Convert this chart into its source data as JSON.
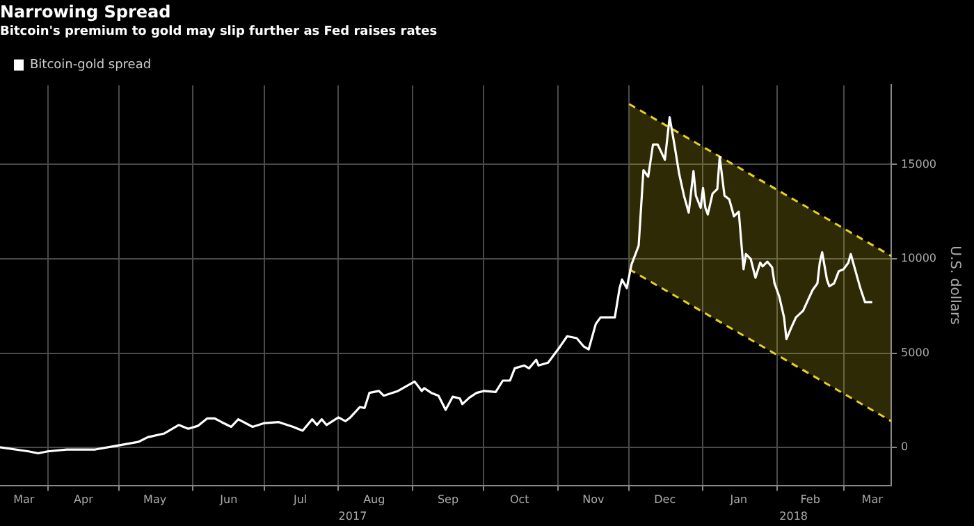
{
  "chart_data": {
    "type": "line",
    "title": "Narrowing Spread",
    "subtitle": "Bitcoin's premium to gold may slip further as Fed raises rates",
    "ylabel": "U.S. dollars",
    "legend": "top left",
    "grid": true,
    "marker": "none",
    "xlim": [
      "2017-03-12",
      "2018-03-21"
    ],
    "xticks": [
      {
        "value": "2017-04-01",
        "label": null
      },
      {
        "value": "2017-05-01",
        "label": null
      },
      {
        "value": "2017-06-01",
        "label": null
      },
      {
        "value": "2017-07-01",
        "label": null
      },
      {
        "value": "2017-08-01",
        "label": null
      },
      {
        "value": "2017-09-01",
        "label": null
      },
      {
        "value": "2017-10-01",
        "label": null
      },
      {
        "value": "2017-11-01",
        "label": null
      },
      {
        "value": "2017-12-01",
        "label": null
      },
      {
        "value": "2018-01-01",
        "label": null
      },
      {
        "value": "2018-02-01",
        "label": null
      },
      {
        "value": "2018-03-01",
        "label": null
      },
      {
        "value": "2017-03-22",
        "label": "Mar"
      },
      {
        "value": "2017-04-16",
        "label": "Apr"
      },
      {
        "value": "2017-05-16",
        "label": "May"
      },
      {
        "value": "2017-06-16",
        "label": "Jun"
      },
      {
        "value": "2017-07-16",
        "label": "Jul"
      },
      {
        "value": "2017-08-16",
        "label": "Aug"
      },
      {
        "value": "2017-09-16",
        "label": "Sep"
      },
      {
        "value": "2017-10-16",
        "label": "Oct"
      },
      {
        "value": "2017-11-16",
        "label": "Nov"
      },
      {
        "value": "2017-12-16",
        "label": "Dec"
      },
      {
        "value": "2018-01-16",
        "label": "Jan"
      },
      {
        "value": "2018-02-15",
        "label": "Feb"
      },
      {
        "value": "2018-03-13",
        "label": "Mar"
      }
    ],
    "x2lim": [
      "2017-03-12",
      "2018-03-21"
    ],
    "x2ticks": [
      {
        "value": "2017-08-07",
        "label": "2017"
      },
      {
        "value": "2018-02-08",
        "label": "2018"
      }
    ],
    "ylim": [
      -2000,
      19200
    ],
    "yticks": [
      0,
      5000,
      10000,
      15000
    ],
    "series": [
      {
        "name": "Bitcoin-gold spread",
        "color": "#ffffff",
        "line_style": "solid",
        "x": [
          "2017-03-12",
          "2017-03-24",
          "2017-03-28",
          "2017-04-01",
          "2017-04-09",
          "2017-04-21",
          "2017-04-30",
          "2017-05-09",
          "2017-05-13",
          "2017-05-20",
          "2017-05-26",
          "2017-05-30",
          "2017-06-03",
          "2017-06-07",
          "2017-06-10",
          "2017-06-13",
          "2017-06-17",
          "2017-06-20",
          "2017-06-26",
          "2017-07-01",
          "2017-07-07",
          "2017-07-13",
          "2017-07-17",
          "2017-07-21",
          "2017-07-23",
          "2017-07-25",
          "2017-07-27",
          "2017-08-01",
          "2017-08-04",
          "2017-08-06",
          "2017-08-10",
          "2017-08-12",
          "2017-08-14",
          "2017-08-18",
          "2017-08-20",
          "2017-08-26",
          "2017-09-02",
          "2017-09-05",
          "2017-09-06",
          "2017-09-09",
          "2017-09-12",
          "2017-09-15",
          "2017-09-18",
          "2017-09-21",
          "2017-09-22",
          "2017-09-25",
          "2017-09-28",
          "2017-10-01",
          "2017-10-06",
          "2017-10-09",
          "2017-10-12",
          "2017-10-14",
          "2017-10-18",
          "2017-10-20",
          "2017-10-23",
          "2017-10-24",
          "2017-10-28",
          "2017-11-02",
          "2017-11-05",
          "2017-11-09",
          "2017-11-12",
          "2017-11-14",
          "2017-11-17",
          "2017-11-19",
          "2017-11-25",
          "2017-11-27",
          "2017-11-28",
          "2017-11-30",
          "2017-12-02",
          "2017-12-05",
          "2017-12-07",
          "2017-12-09",
          "2017-12-11",
          "2017-12-13",
          "2017-12-16",
          "2017-12-18",
          "2017-12-20",
          "2017-12-22",
          "2017-12-24",
          "2017-12-26",
          "2017-12-28",
          "2017-12-29",
          "2017-12-31",
          "2018-01-01",
          "2018-01-02",
          "2018-01-03",
          "2018-01-05",
          "2018-01-07",
          "2018-01-08",
          "2018-01-10",
          "2018-01-12",
          "2018-01-14",
          "2018-01-16",
          "2018-01-18",
          "2018-01-19",
          "2018-01-21",
          "2018-01-23",
          "2018-01-25",
          "2018-01-26",
          "2018-01-28",
          "2018-01-30",
          "2018-01-31",
          "2018-02-02",
          "2018-02-04",
          "2018-02-05",
          "2018-02-07",
          "2018-02-09",
          "2018-02-12",
          "2018-02-14",
          "2018-02-16",
          "2018-02-18",
          "2018-02-19",
          "2018-02-20",
          "2018-02-22",
          "2018-02-23",
          "2018-02-25",
          "2018-02-27",
          "2018-03-01",
          "2018-03-03",
          "2018-03-04",
          "2018-03-06",
          "2018-03-08",
          "2018-03-10",
          "2018-03-13"
        ],
        "values": [
          20,
          -200,
          -300,
          -200,
          -100,
          -100,
          100,
          300,
          550,
          750,
          1200,
          1000,
          1150,
          1550,
          1550,
          1350,
          1100,
          1500,
          1100,
          1300,
          1350,
          1100,
          900,
          1500,
          1200,
          1500,
          1200,
          1600,
          1400,
          1600,
          2150,
          2100,
          2900,
          3000,
          2750,
          3000,
          3500,
          3000,
          3150,
          2900,
          2750,
          2000,
          2700,
          2600,
          2300,
          2650,
          2900,
          3000,
          2950,
          3550,
          3550,
          4200,
          4350,
          4200,
          4650,
          4350,
          4500,
          5350,
          5900,
          5800,
          5350,
          5200,
          6550,
          6900,
          6900,
          8450,
          8900,
          8450,
          9700,
          10700,
          14700,
          14350,
          16050,
          16050,
          15250,
          17500,
          16050,
          14500,
          13350,
          12450,
          14650,
          13350,
          12700,
          13750,
          12700,
          12350,
          13450,
          13700,
          15400,
          13350,
          13150,
          12250,
          12500,
          9450,
          10250,
          10000,
          9000,
          9800,
          9600,
          9850,
          9550,
          8700,
          8000,
          6900,
          5750,
          6350,
          6900,
          7250,
          7800,
          8350,
          8700,
          9800,
          10350,
          8900,
          8550,
          8700,
          9350,
          9450,
          9800,
          10250,
          9350,
          8450,
          7700,
          7700
        ]
      },
      {
        "type": "area",
        "color": "#e6d21e",
        "line_style": "dashed",
        "x": [
          "2017-12-01",
          "2018-03-21"
        ],
        "values": [
          18200,
          10150
        ]
      },
      {
        "type": "line",
        "color": "#e6d21e",
        "line_style": "dashed",
        "x": [
          "2017-12-01",
          "2018-03-21"
        ],
        "values": [
          9450,
          1400
        ]
      }
    ]
  }
}
